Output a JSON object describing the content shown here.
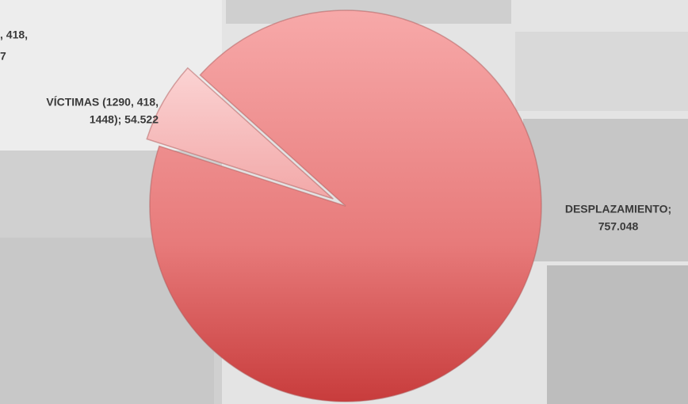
{
  "chart_data": {
    "type": "pie",
    "categories": [
      "DESPLAZAMIENTO",
      "VÍCTIMAS (1290, 418, 1448)"
    ],
    "values": [
      757048,
      54522
    ],
    "value_labels": [
      "757.048",
      "54.522"
    ],
    "labels": [
      [
        "DESPLAZAMIENTO;",
        "757.048"
      ],
      [
        "VÍCTIMAS (1290, 418,",
        "1448); 54.522"
      ]
    ],
    "colors": [
      "#e77a7a",
      "#f6b9b9"
    ],
    "annotations": [
      ", 418,",
      "7"
    ]
  }
}
